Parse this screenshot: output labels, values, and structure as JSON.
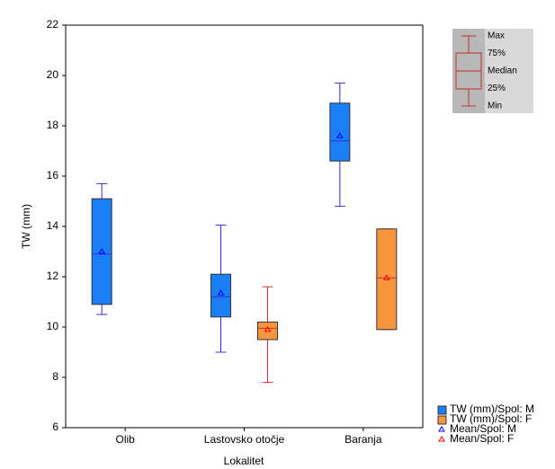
{
  "chart_data": {
    "type": "box",
    "x_label": "Lokalitet",
    "y_label": "TW (mm)",
    "categories": [
      "Olib",
      "Lastovsko otočje",
      "Baranja"
    ],
    "ylim": [
      6,
      22
    ],
    "yticks": [
      6,
      8,
      10,
      12,
      14,
      16,
      18,
      20,
      22
    ],
    "grid": true,
    "series": [
      {
        "name": "TW (mm)/Spol: M",
        "mean_name": "Mean/Spol: M",
        "color": "#1a7ff5",
        "line_color": "#3030d0",
        "mean_color": "#0000ff",
        "min": [
          10.5,
          9.0,
          14.8
        ],
        "q1": [
          10.9,
          10.4,
          16.6
        ],
        "median": [
          12.9,
          11.2,
          17.4
        ],
        "q3": [
          15.1,
          12.1,
          18.9
        ],
        "max": [
          15.7,
          14.05,
          19.7
        ],
        "mean": [
          13.0,
          11.35,
          17.6
        ]
      },
      {
        "name": "TW (mm)/Spol: F",
        "mean_name": "Mean/Spol: F",
        "color": "#f7953f",
        "line_color": "#d03030",
        "mean_color": "#ff0000",
        "min": [
          null,
          7.8,
          9.9
        ],
        "q1": [
          null,
          9.5,
          9.9
        ],
        "median": [
          null,
          9.95,
          11.95
        ],
        "q3": [
          null,
          10.2,
          13.9
        ],
        "max": [
          null,
          11.6,
          13.9
        ],
        "mean": [
          null,
          9.9,
          11.95
        ]
      }
    ],
    "key": {
      "labels": [
        "Max",
        "75%",
        "Median",
        "25%",
        "Min"
      ]
    }
  }
}
